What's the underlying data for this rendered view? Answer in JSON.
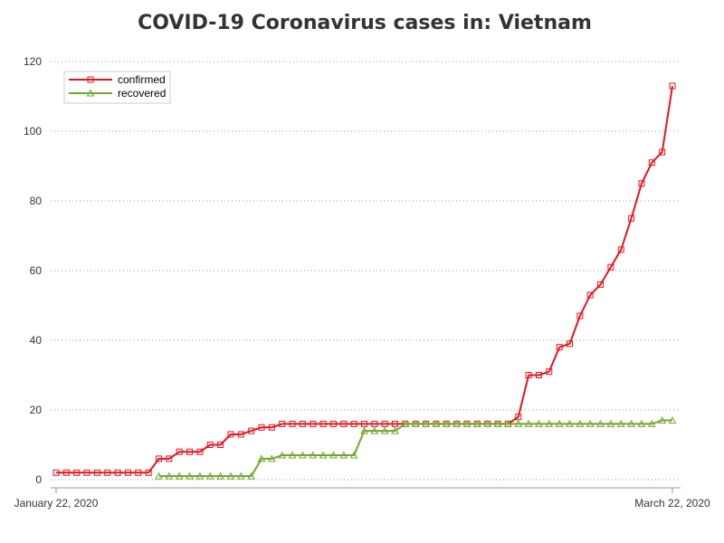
{
  "chart_data": {
    "type": "line",
    "title": "COVID-19 Coronavirus cases in: Vietnam",
    "xlabel": "",
    "ylabel": "",
    "x_start": "2020-01-22",
    "x_end": "2020-03-22",
    "x_tick_labels": [
      "January 22, 2020",
      "March 22, 2020"
    ],
    "ylim": [
      0,
      120
    ],
    "y_ticks": [
      0,
      20,
      40,
      60,
      80,
      100,
      120
    ],
    "grid": "horizontal dotted",
    "legend_position": "top-left",
    "series": [
      {
        "name": "confirmed",
        "color": "#e8141b",
        "marker": "square",
        "points": [
          [
            "2020-01-22",
            2
          ],
          [
            "2020-01-23",
            2
          ],
          [
            "2020-01-24",
            2
          ],
          [
            "2020-01-25",
            2
          ],
          [
            "2020-01-26",
            2
          ],
          [
            "2020-01-27",
            2
          ],
          [
            "2020-01-28",
            2
          ],
          [
            "2020-01-29",
            2
          ],
          [
            "2020-01-30",
            2
          ],
          [
            "2020-01-31",
            2
          ],
          [
            "2020-02-01",
            6
          ],
          [
            "2020-02-02",
            6
          ],
          [
            "2020-02-03",
            8
          ],
          [
            "2020-02-04",
            8
          ],
          [
            "2020-02-05",
            8
          ],
          [
            "2020-02-06",
            10
          ],
          [
            "2020-02-07",
            10
          ],
          [
            "2020-02-08",
            13
          ],
          [
            "2020-02-09",
            13
          ],
          [
            "2020-02-10",
            14
          ],
          [
            "2020-02-11",
            15
          ],
          [
            "2020-02-12",
            15
          ],
          [
            "2020-02-13",
            16
          ],
          [
            "2020-02-14",
            16
          ],
          [
            "2020-02-15",
            16
          ],
          [
            "2020-02-16",
            16
          ],
          [
            "2020-02-17",
            16
          ],
          [
            "2020-02-18",
            16
          ],
          [
            "2020-02-19",
            16
          ],
          [
            "2020-02-20",
            16
          ],
          [
            "2020-02-21",
            16
          ],
          [
            "2020-02-22",
            16
          ],
          [
            "2020-02-23",
            16
          ],
          [
            "2020-02-24",
            16
          ],
          [
            "2020-02-25",
            16
          ],
          [
            "2020-02-26",
            16
          ],
          [
            "2020-02-27",
            16
          ],
          [
            "2020-02-28",
            16
          ],
          [
            "2020-02-29",
            16
          ],
          [
            "2020-03-01",
            16
          ],
          [
            "2020-03-02",
            16
          ],
          [
            "2020-03-03",
            16
          ],
          [
            "2020-03-04",
            16
          ],
          [
            "2020-03-05",
            16
          ],
          [
            "2020-03-06",
            16
          ],
          [
            "2020-03-07",
            18
          ],
          [
            "2020-03-08",
            30
          ],
          [
            "2020-03-09",
            30
          ],
          [
            "2020-03-10",
            31
          ],
          [
            "2020-03-11",
            38
          ],
          [
            "2020-03-12",
            39
          ],
          [
            "2020-03-13",
            47
          ],
          [
            "2020-03-14",
            53
          ],
          [
            "2020-03-15",
            56
          ],
          [
            "2020-03-16",
            61
          ],
          [
            "2020-03-17",
            66
          ],
          [
            "2020-03-18",
            75
          ],
          [
            "2020-03-19",
            85
          ],
          [
            "2020-03-20",
            91
          ],
          [
            "2020-03-21",
            94
          ],
          [
            "2020-03-22",
            113
          ]
        ]
      },
      {
        "name": "recovered",
        "color": "#6fa82a",
        "marker": "triangle",
        "points": [
          [
            "2020-02-01",
            1
          ],
          [
            "2020-02-02",
            1
          ],
          [
            "2020-02-03",
            1
          ],
          [
            "2020-02-04",
            1
          ],
          [
            "2020-02-05",
            1
          ],
          [
            "2020-02-06",
            1
          ],
          [
            "2020-02-07",
            1
          ],
          [
            "2020-02-08",
            1
          ],
          [
            "2020-02-09",
            1
          ],
          [
            "2020-02-10",
            1
          ],
          [
            "2020-02-11",
            6
          ],
          [
            "2020-02-12",
            6
          ],
          [
            "2020-02-13",
            7
          ],
          [
            "2020-02-14",
            7
          ],
          [
            "2020-02-15",
            7
          ],
          [
            "2020-02-16",
            7
          ],
          [
            "2020-02-17",
            7
          ],
          [
            "2020-02-18",
            7
          ],
          [
            "2020-02-19",
            7
          ],
          [
            "2020-02-20",
            7
          ],
          [
            "2020-02-21",
            14
          ],
          [
            "2020-02-22",
            14
          ],
          [
            "2020-02-23",
            14
          ],
          [
            "2020-02-24",
            14
          ],
          [
            "2020-02-25",
            16
          ],
          [
            "2020-02-26",
            16
          ],
          [
            "2020-02-27",
            16
          ],
          [
            "2020-02-28",
            16
          ],
          [
            "2020-02-29",
            16
          ],
          [
            "2020-03-01",
            16
          ],
          [
            "2020-03-02",
            16
          ],
          [
            "2020-03-03",
            16
          ],
          [
            "2020-03-04",
            16
          ],
          [
            "2020-03-05",
            16
          ],
          [
            "2020-03-06",
            16
          ],
          [
            "2020-03-07",
            16
          ],
          [
            "2020-03-08",
            16
          ],
          [
            "2020-03-09",
            16
          ],
          [
            "2020-03-10",
            16
          ],
          [
            "2020-03-11",
            16
          ],
          [
            "2020-03-12",
            16
          ],
          [
            "2020-03-13",
            16
          ],
          [
            "2020-03-14",
            16
          ],
          [
            "2020-03-15",
            16
          ],
          [
            "2020-03-16",
            16
          ],
          [
            "2020-03-17",
            16
          ],
          [
            "2020-03-18",
            16
          ],
          [
            "2020-03-19",
            16
          ],
          [
            "2020-03-20",
            16
          ],
          [
            "2020-03-21",
            17
          ],
          [
            "2020-03-22",
            17
          ]
        ]
      }
    ]
  }
}
